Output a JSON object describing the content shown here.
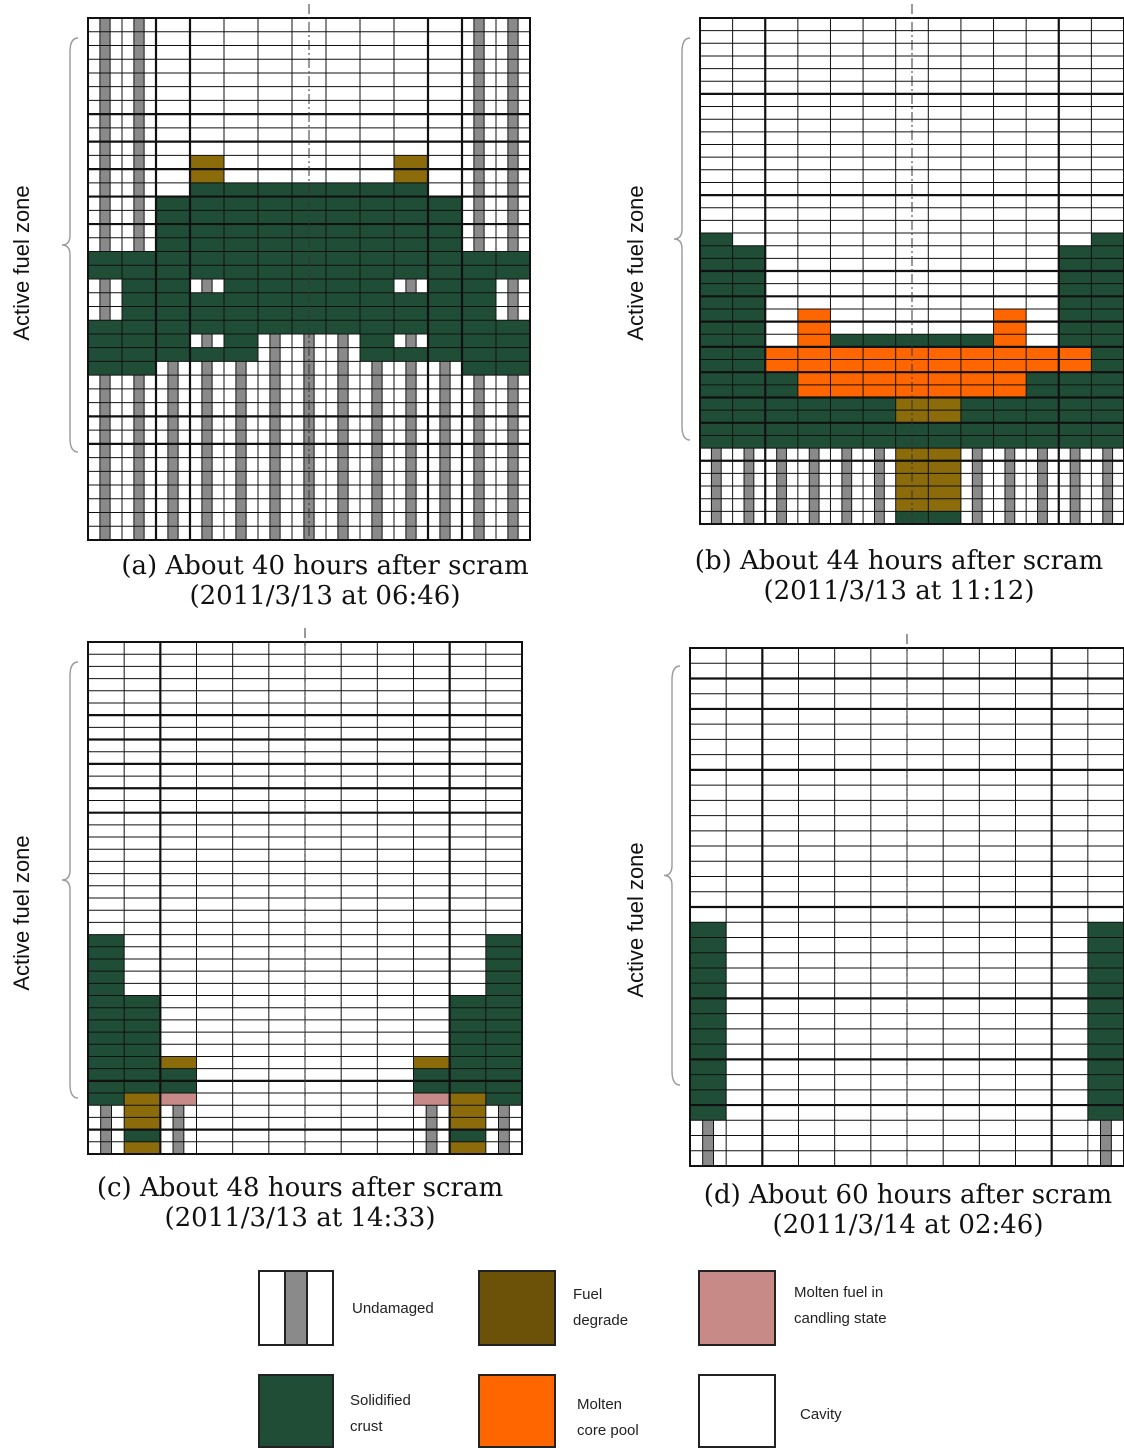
{
  "panels": [
    {
      "id": "a",
      "caption_line1": "(a) About 40 hours after scram",
      "caption_line2": "(2011/3/13 at 06:46)",
      "zone_label": "Active fuel zone",
      "cell_map": [
        "RRUUUUUUUUURR",
        "RRUUUUUUUUURR",
        "RRUUUUUUUUURR",
        "RRUUUUUUUUURR",
        "RRUUUUUUUUURR",
        "RRUUUUUUUUURR",
        "RRUUUUUUUUURR",
        "RRUUUUUUUUURR",
        "RRUUUUUUUUURR",
        "RRUUUUUUUUURR",
        "RRUDUUUUUDURR",
        "RRUDUUUUUDURR",
        "RRUSSSSSSSURR",
        "RRSSSSSSSSSRR",
        "RRSSSSSSSSSRR",
        "RRSSSSSSSSSRR",
        "RRSSSSSSSSSRR",
        "SSSSSSSSSSSSS",
        "SSSSSSSSSSSSS",
        "RSSRSSSSSRSSR",
        "RSSSSSSSSSSSR",
        "RSSSSSSSSSSSR",
        "SSSSSSSSSSSSS",
        "SSSRSRRRSRSSS",
        "SSSSSRRRSSSSS",
        "SSRRRRRRRRRSS",
        "RRRRRRRRRRRRR",
        "RRRRRRRRRRRRR",
        "RRRRRRRRRRRRR",
        "RRRRRRRRRRRRR",
        "RRRRRRRRRRRRR",
        "RRRRRRRRRRRRR",
        "RRRRRRRRRRRRR",
        "RRRRRRRRRRRRR",
        "RRRRRRRRRRRRR",
        "RRRRRRRRRRRRR",
        "RRRRRRRRRRRRR",
        "RRRRRRRRRRRRR"
      ]
    },
    {
      "id": "b",
      "caption_line1": "(b) About 44 hours after scram",
      "caption_line2": "(2011/3/13 at 11:12)",
      "zone_label": "Active fuel zone",
      "cell_map": [
        "UUUUUUUUUUUUU",
        "UUUUUUUUUUUUU",
        "UUUUUUUUUUUUU",
        "UUUUUUUUUUUUU",
        "UUUUUUUUUUUUU",
        "UUUUUUUUUUUUU",
        "UUUUUUUUUUUUU",
        "UUUUUUUUUUUUU",
        "UUUUUUUUUUUUU",
        "UUUUUUUUUUUUU",
        "UUUUUUUUUUUUU",
        "UUUUUUUUUUUUU",
        "UUUUUUUUUUUUU",
        "UUUUUUUUUUUUU",
        "UUUUUUUUUUUUU",
        "UUUUUUUUUUUUU",
        "UUUUUUUUUUUUU",
        "SUUUUUUUUUUUS",
        "SSUUUUUUUUUSS",
        "SSUUUUUUUUUSS",
        "SSUUUUUUUUUSS",
        "SSUUUUUUUUUSS",
        "SSUUUUUUUUUSS",
        "SSUMUUUUUMUSS",
        "SSUMUUUUUMUSS",
        "SSUMSSSSSMUSS",
        "SSMMMMMMMMMMS",
        "SSMMMMMMMMMMS",
        "SSSMMMMMMMSSS",
        "SSSMMMMMMMSSS",
        "SSSSSSDDSSSSS",
        "SSSSSSDDSSSSS",
        "SSSSSSSSSSSSS",
        "SSSSSSSSSSSSS",
        "RRRRRRDDRRRRR",
        "RRRRRRDDRRRRR",
        "RRRRRRDDRRRRR",
        "RRRRRRDDRRRRR",
        "RRRRRRDDRRRRR",
        "RRRRRRSSRRRRR"
      ]
    },
    {
      "id": "c",
      "caption_line1": "(c) About 48 hours after scram",
      "caption_line2": "(2011/3/13 at 14:33)",
      "zone_label": "Active fuel zone",
      "cell_map": [
        "UUUUUUUUUUUU",
        "UUUUUUUUUUUU",
        "UUUUUUUUUUUU",
        "UUUUUUUUUUUU",
        "UUUUUUUUUUUU",
        "UUUUUUUUUUUU",
        "UUUUUUUUUUUU",
        "UUUUUUUUUUUU",
        "UUUUUUUUUUUU",
        "UUUUUUUUUUUU",
        "UUUUUUUUUUUU",
        "UUUUUUUUUUUU",
        "UUUUUUUUUUUU",
        "UUUUUUUUUUUU",
        "UUUUUUUUUUUU",
        "UUUUUUUUUUUU",
        "UUUUUUUUUUUU",
        "UUUUUUUUUUUU",
        "UUUUUUUUUUUU",
        "UUUUUUUUUUUU",
        "UUUUUUUUUUUU",
        "UUUUUUUUUUUU",
        "UUUUUUUUUUUU",
        "UUUUUUUUUUUU",
        "SUUUUUUUUUUS",
        "SUUUUUUUUUUS",
        "SUUUUUUUUUUS",
        "SUUUUUUUUUUS",
        "SUUUUUUUUUUS",
        "SSUUUUUUUUSS",
        "SSUUUUUUUUSS",
        "SSUUUUUUUUSS",
        "SSUUUUUUUUSS",
        "SSUUUUUUUUSS",
        "SSDUUUUUUDSS",
        "SSSUUUUUUSSS",
        "SSSUUUUUUSSS",
        "SDPUUUUUUPDS",
        "RDRUUUUUURDR",
        "RDRUUUUUURDR",
        "RSRUUUUUURSR",
        "RDRUUUUUURDR"
      ]
    },
    {
      "id": "d",
      "caption_line1": "(d) About 60 hours after scram",
      "caption_line2": "(2011/3/14 at 02:46)",
      "zone_label": "Active fuel zone",
      "cell_map": [
        "UUUUUUUUUUUU",
        "UUUUUUUUUUUU",
        "UUUUUUUUUUUU",
        "UUUUUUUUUUUU",
        "UUUUUUUUUUUU",
        "UUUUUUUUUUUU",
        "UUUUUUUUUUUU",
        "UUUUUUUUUUUU",
        "UUUUUUUUUUUU",
        "UUUUUUUUUUUU",
        "UUUUUUUUUUUU",
        "UUUUUUUUUUUU",
        "UUUUUUUUUUUU",
        "UUUUUUUUUUUU",
        "UUUUUUUUUUUU",
        "UUUUUUUUUUUU",
        "UUUUUUUUUUUU",
        "UUUUUUUUUUUU",
        "SUUUUUUUUUUS",
        "SUUUUUUUUUUS",
        "SUUUUUUUUUUS",
        "SUUUUUUUUUUS",
        "SUUUUUUUUUUS",
        "SUUUUUUUUUUS",
        "SUUUUUUUUUUS",
        "SUUUUUUUUUUS",
        "SUUUUUUUUUUS",
        "SUUUUUUUUUUS",
        "SUUUUUUUUUUS",
        "SUUUUUUUUUUS",
        "SUUUUUUUUUUS",
        "RUUUUUUUUUUR",
        "RUUUUUUUUUUR",
        "RUUUUUUUUUUR"
      ]
    }
  ],
  "legend": {
    "items": [
      {
        "key": "undamaged",
        "line1": "Undamaged",
        "line2": ""
      },
      {
        "key": "fuel_degrade",
        "line1": "Fuel",
        "line2": "degrade"
      },
      {
        "key": "candling",
        "line1": "Molten  fuel  in",
        "line2": "candling state"
      },
      {
        "key": "crust",
        "line1": "Solidified",
        "line2": "crust"
      },
      {
        "key": "molten_pool",
        "line1": "Molten",
        "line2": "core pool"
      },
      {
        "key": "cavity",
        "line1": "Cavity",
        "line2": ""
      }
    ]
  },
  "colors": {
    "crust": "#1f4d36",
    "fuel_degrade": "#8b6b0a",
    "fuel_degrade_swatch": "#6b5208",
    "molten_pool": "#ff6600",
    "candling": "#c88a86",
    "rod": "#8a8a8a",
    "cavity": "#ffffff",
    "grid_line": "#111111"
  }
}
